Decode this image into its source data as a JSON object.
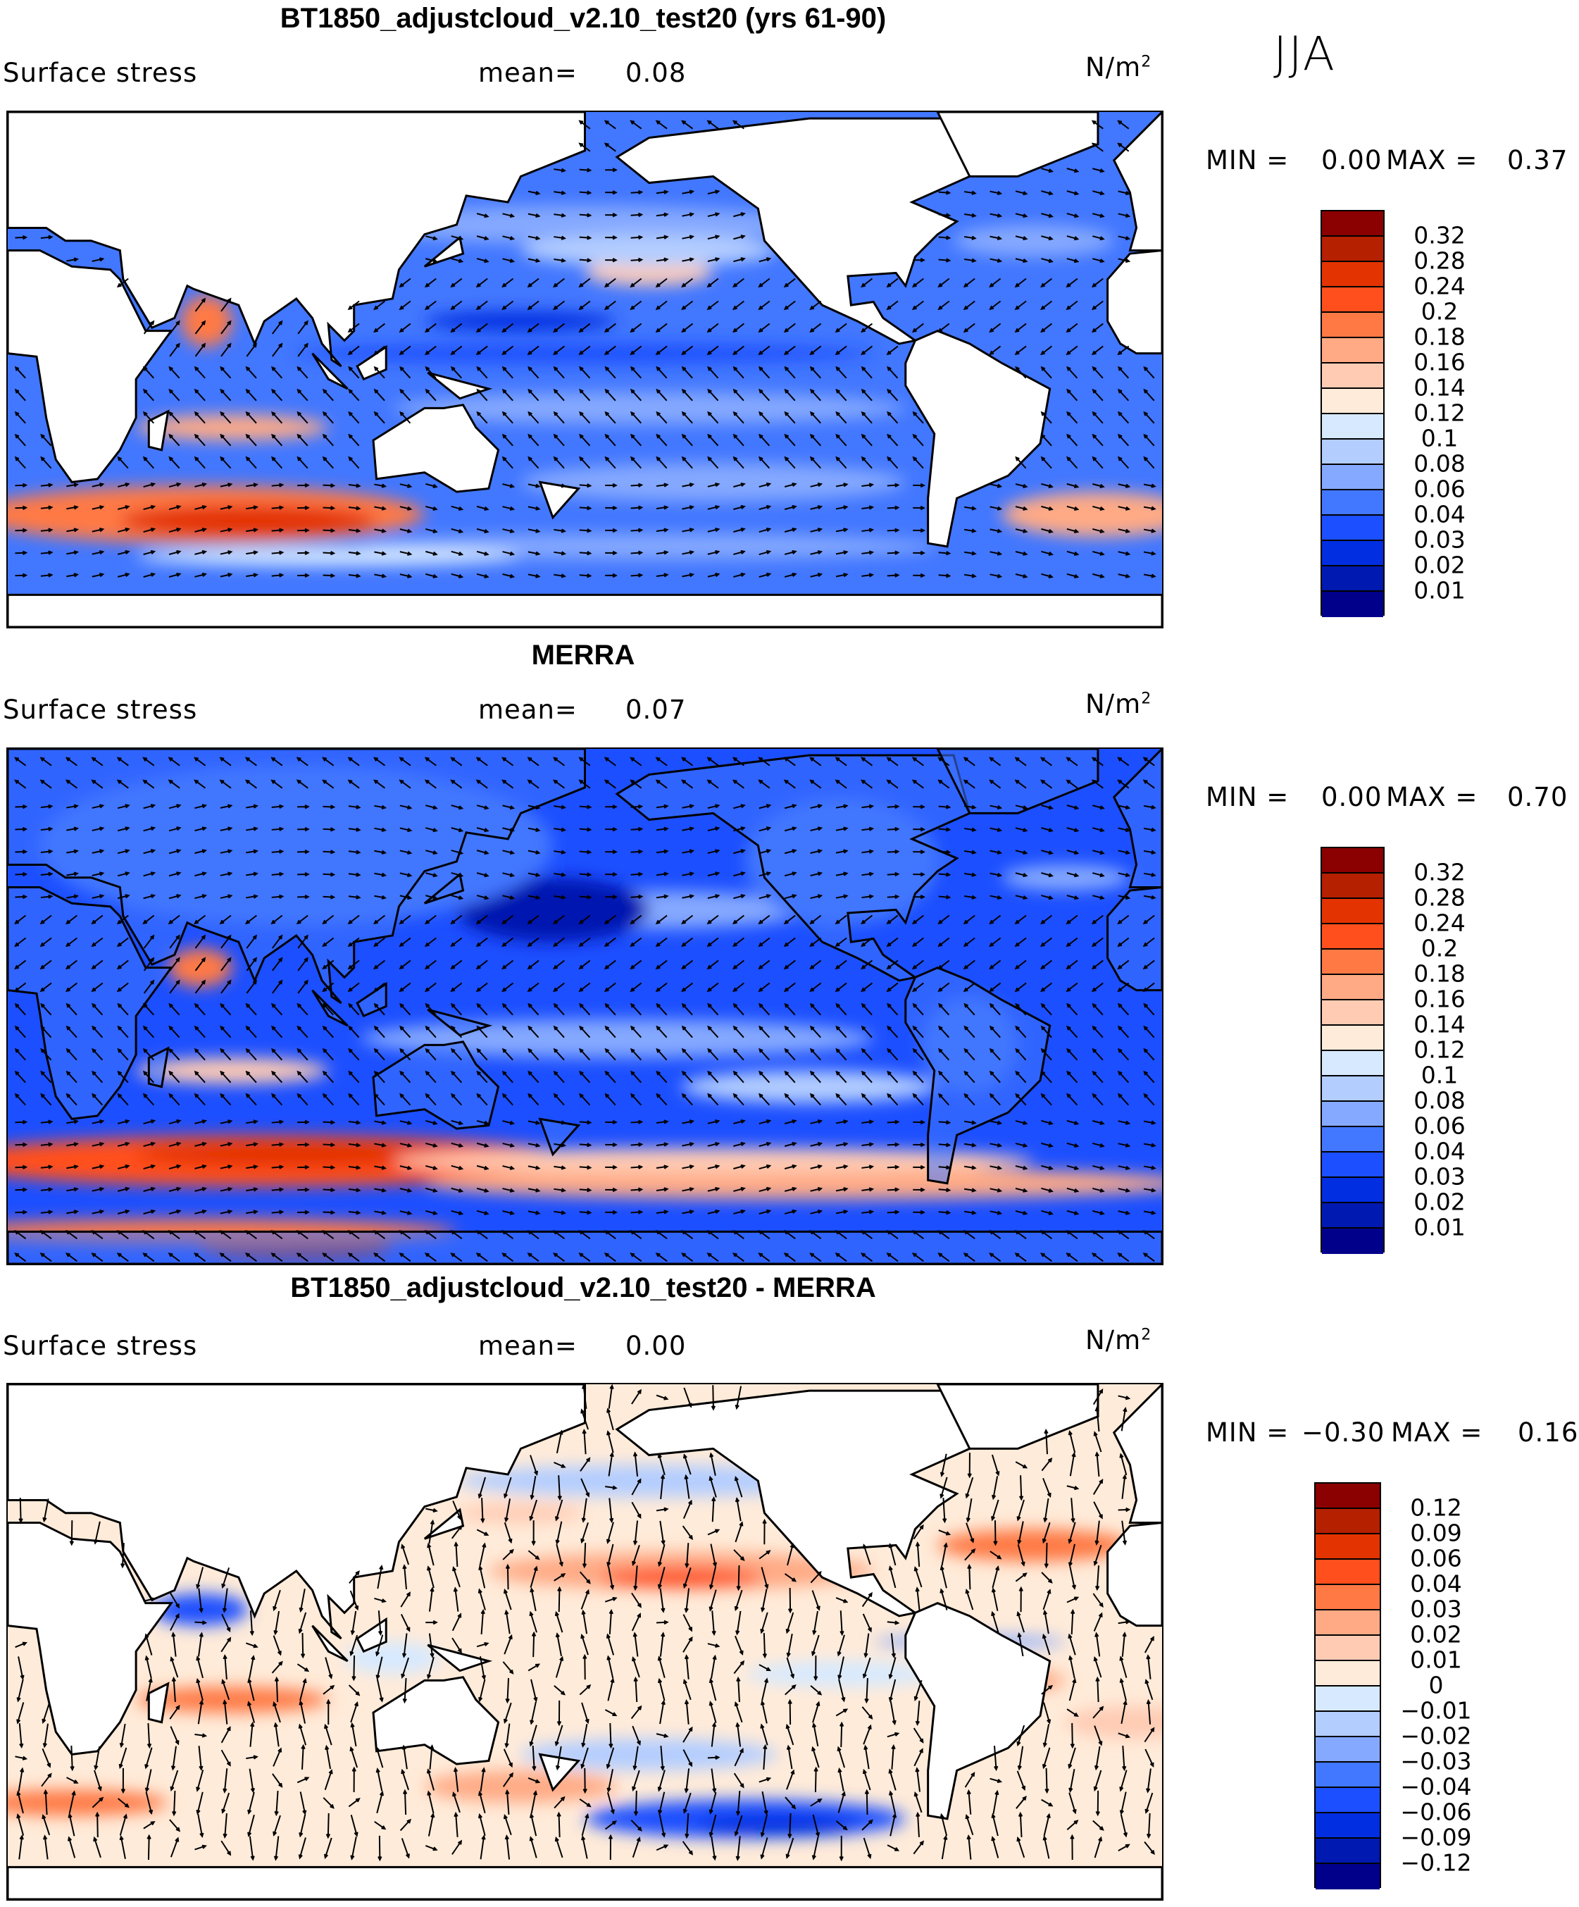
{
  "season": "JJA",
  "chart_data": [
    {
      "type": "contour map with vector overlay",
      "title": "BT1850_adjustcloud_v2.10_test20 (yrs 61-90)",
      "variable": "Surface stress",
      "mean_label": "mean=",
      "mean": "0.08",
      "units": "N/m",
      "units_sup": "2",
      "min_label": "MIN =",
      "min": "0.00",
      "max_label": "MAX =",
      "max": "0.37",
      "colorbar_levels": [
        "0.32",
        "0.28",
        "0.24",
        "0.2",
        "0.18",
        "0.16",
        "0.14",
        "0.12",
        "0.1",
        "0.08",
        "0.06",
        "0.04",
        "0.03",
        "0.02",
        "0.01"
      ],
      "land": "white"
    },
    {
      "type": "contour map with vector overlay",
      "title": "MERRA",
      "variable": "Surface stress",
      "mean_label": "mean=",
      "mean": "0.07",
      "units": "N/m",
      "units_sup": "2",
      "min_label": "MIN =",
      "min": "0.00",
      "max_label": "MAX =",
      "max": "0.70",
      "colorbar_levels": [
        "0.32",
        "0.28",
        "0.24",
        "0.2",
        "0.18",
        "0.16",
        "0.14",
        "0.12",
        "0.1",
        "0.08",
        "0.06",
        "0.04",
        "0.03",
        "0.02",
        "0.01"
      ],
      "land": "filled"
    },
    {
      "type": "contour map with vector overlay",
      "title": "BT1850_adjustcloud_v2.10_test20 - MERRA",
      "variable": "Surface stress",
      "mean_label": "mean=",
      "mean": "0.00",
      "units": "N/m",
      "units_sup": "2",
      "min_label": "MIN =",
      "min": "−0.30",
      "max_label": "MAX =",
      "max": "0.16",
      "colorbar_levels": [
        "0.12",
        "0.09",
        "0.06",
        "0.04",
        "0.03",
        "0.02",
        "0.01",
        "0",
        "−0.01",
        "−0.02",
        "−0.03",
        "−0.04",
        "−0.06",
        "−0.09",
        "−0.12"
      ],
      "land": "white"
    }
  ],
  "colorbar_colors": [
    "#8b0000",
    "#b42000",
    "#e33300",
    "#ff4f1c",
    "#ff7945",
    "#ffaa85",
    "#ffcbb3",
    "#ffebd9",
    "#d6e9ff",
    "#b3cdff",
    "#85a9ff",
    "#4277ff",
    "#1c4fff",
    "#002ee0",
    "#0019b0",
    "#00008b"
  ]
}
